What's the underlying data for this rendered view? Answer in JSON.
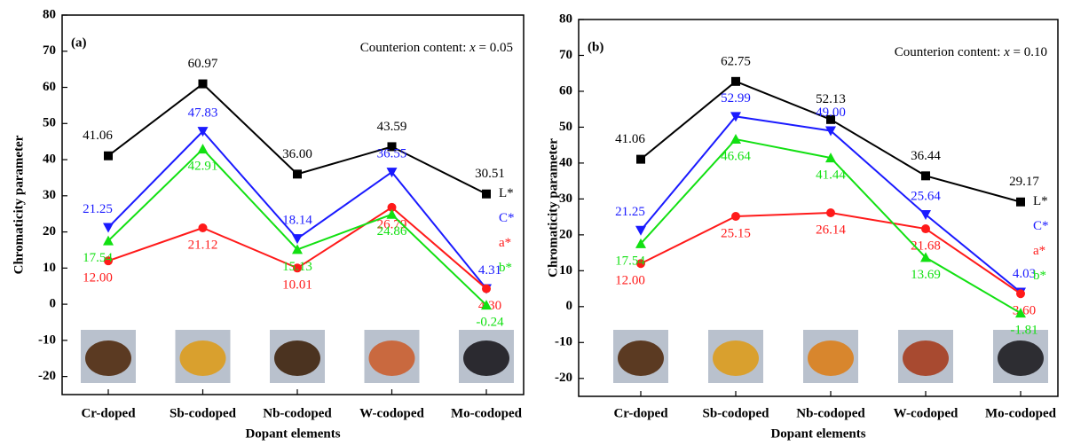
{
  "chart_data": [
    {
      "type": "line",
      "panel_label": "(a)",
      "annotation": [
        "Counterion content: ",
        "x",
        " = 0.05"
      ],
      "xlabel": "Dopant elements",
      "ylabel": "Chromaticity parameter",
      "categories": [
        "Cr-doped",
        "Sb-codoped",
        "Nb-codoped",
        "W-codoped",
        "Mo-codoped"
      ],
      "ylim": [
        -25,
        80
      ],
      "yticks": [
        -20,
        -10,
        0,
        10,
        20,
        30,
        40,
        50,
        60,
        70,
        80
      ],
      "series": [
        {
          "name": "L*",
          "color": "#000000",
          "marker": "square",
          "values": [
            41.06,
            60.97,
            36.0,
            43.59,
            30.51
          ],
          "value_labels": [
            "41.06",
            "60.97",
            "36.00",
            "43.59",
            "30.51"
          ]
        },
        {
          "name": "C*",
          "color": "#1a1aff",
          "marker": "triangle-down",
          "values": [
            21.25,
            47.83,
            18.14,
            36.55,
            4.31
          ],
          "value_labels": [
            "21.25",
            "47.83",
            "18.14",
            "36.55",
            "4.31"
          ]
        },
        {
          "name": "a*",
          "color": "#ff1a1a",
          "marker": "circle",
          "values": [
            12.0,
            21.12,
            10.01,
            26.79,
            4.3
          ],
          "value_labels": [
            "12.00",
            "21.12",
            "10.01",
            "26.79",
            "4.30"
          ]
        },
        {
          "name": "b*",
          "color": "#12e012",
          "marker": "triangle-up",
          "values": [
            17.54,
            42.91,
            15.13,
            24.86,
            -0.24
          ],
          "value_labels": [
            "17.54",
            "42.91",
            "15.13",
            "24.86",
            "-0.24"
          ]
        }
      ]
    },
    {
      "type": "line",
      "panel_label": "(b)",
      "annotation": [
        "Counterion content: ",
        "x",
        " = 0.10"
      ],
      "xlabel": "Dopant elements",
      "ylabel": "Chromaticity parameter",
      "categories": [
        "Cr-doped",
        "Sb-codoped",
        "Nb-codoped",
        "W-codoped",
        "Mo-codoped"
      ],
      "ylim": [
        -25,
        80
      ],
      "yticks": [
        -20,
        -10,
        0,
        10,
        20,
        30,
        40,
        50,
        60,
        70,
        80
      ],
      "series": [
        {
          "name": "L*",
          "color": "#000000",
          "marker": "square",
          "values": [
            41.06,
            62.75,
            52.13,
            36.44,
            29.17
          ],
          "value_labels": [
            "41.06",
            "62.75",
            "52.13",
            "36.44",
            "29.17"
          ]
        },
        {
          "name": "C*",
          "color": "#1a1aff",
          "marker": "triangle-down",
          "values": [
            21.25,
            52.99,
            49.0,
            25.64,
            4.03
          ],
          "value_labels": [
            "21.25",
            "52.99",
            "49.00",
            "25.64",
            "4.03"
          ]
        },
        {
          "name": "a*",
          "color": "#ff1a1a",
          "marker": "circle",
          "values": [
            12.0,
            25.15,
            26.14,
            21.68,
            3.6
          ],
          "value_labels": [
            "12.00",
            "25.15",
            "26.14",
            "21.68",
            "3.60"
          ]
        },
        {
          "name": "b*",
          "color": "#12e012",
          "marker": "triangle-up",
          "values": [
            17.54,
            46.64,
            41.44,
            13.69,
            -1.81
          ],
          "value_labels": [
            "17.54",
            "46.64",
            "41.44",
            "13.69",
            "-1.81"
          ]
        }
      ]
    }
  ]
}
